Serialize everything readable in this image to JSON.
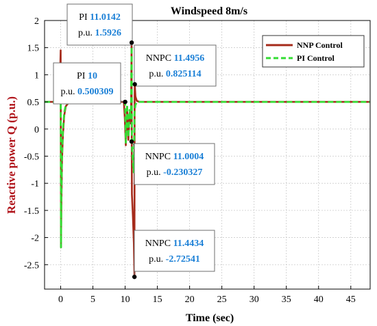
{
  "chart_data": {
    "type": "line",
    "title": "Windspeed 8m/s",
    "xlabel": "Time (sec)",
    "ylabel": "Reactive power Q (p.u.)",
    "xlim": [
      -2.5,
      48
    ],
    "ylim": [
      -2.95,
      2.0
    ],
    "xticks": [
      0,
      5,
      10,
      15,
      20,
      25,
      30,
      35,
      40,
      45
    ],
    "yticks": [
      -2.5,
      -2,
      -1.5,
      -1,
      -0.5,
      0,
      0.5,
      1,
      1.5,
      2
    ],
    "grid": true,
    "legend_position": "top-right",
    "series": [
      {
        "name": "NNP Control",
        "color": "#a52a1a",
        "style": "solid",
        "points": [
          [
            -2.5,
            0.5
          ],
          [
            -0.2,
            0.5
          ],
          [
            0,
            1.45
          ],
          [
            0.05,
            -2.18
          ],
          [
            0.1,
            -1.5
          ],
          [
            0.2,
            -0.6
          ],
          [
            0.35,
            -0.1
          ],
          [
            0.55,
            0.25
          ],
          [
            0.8,
            0.42
          ],
          [
            1.2,
            0.48
          ],
          [
            1.8,
            0.5
          ],
          [
            9.8,
            0.5
          ],
          [
            9.95,
            0.2
          ],
          [
            10.1,
            -0.3
          ],
          [
            10.3,
            0.4
          ],
          [
            10.5,
            -0.2
          ],
          [
            10.7,
            0.3
          ],
          [
            10.9,
            0.1
          ],
          [
            11.0,
            1.59
          ],
          [
            11.02,
            -0.23
          ],
          [
            11.05,
            -1.2
          ],
          [
            11.2,
            -1.6
          ],
          [
            11.35,
            -2.1
          ],
          [
            11.4434,
            -2.72541
          ],
          [
            11.47,
            0.6
          ],
          [
            11.4956,
            0.825114
          ],
          [
            11.6,
            0.6
          ],
          [
            11.8,
            0.52
          ],
          [
            12.2,
            0.5
          ],
          [
            48,
            0.5
          ]
        ]
      },
      {
        "name": "PI Control",
        "color": "#33dd33",
        "style": "dashed",
        "points": [
          [
            -2.5,
            0.5
          ],
          [
            -0.2,
            0.5
          ],
          [
            0,
            1.1
          ],
          [
            0.05,
            -2.18
          ],
          [
            0.1,
            -1.3
          ],
          [
            0.2,
            -0.5
          ],
          [
            0.35,
            0.0
          ],
          [
            0.55,
            0.3
          ],
          [
            0.8,
            0.45
          ],
          [
            1.2,
            0.49
          ],
          [
            1.8,
            0.500309
          ],
          [
            9.8,
            0.5
          ],
          [
            10.0,
            0.500309
          ],
          [
            10.1,
            -0.25
          ],
          [
            10.3,
            0.45
          ],
          [
            10.5,
            -0.15
          ],
          [
            10.7,
            0.35
          ],
          [
            10.9,
            0.2
          ],
          [
            11.0142,
            1.5926
          ],
          [
            11.05,
            -0.3
          ],
          [
            11.2,
            -0.6
          ],
          [
            11.35,
            -0.8
          ],
          [
            11.45,
            0.3
          ],
          [
            11.6,
            0.45
          ],
          [
            11.9,
            0.5
          ],
          [
            48,
            0.5
          ]
        ]
      }
    ],
    "datatips": [
      {
        "id": "tip-pi-10",
        "x": 10,
        "y": 0.500309,
        "prefix": "PI",
        "x_text": "10",
        "y_text": "0.500309"
      },
      {
        "id": "tip-pi-11",
        "x": 11.0142,
        "y": 1.5926,
        "prefix": "PI",
        "x_text": "11.0142",
        "y_text": "1.5926"
      },
      {
        "id": "tip-nnpc-11-4956",
        "x": 11.4956,
        "y": 0.825114,
        "prefix": "NNPC",
        "x_text": "11.4956",
        "y_text": "0.825114"
      },
      {
        "id": "tip-nnpc-11-0004",
        "x": 11.0004,
        "y": -0.230327,
        "prefix": "NNPC",
        "x_text": "11.0004",
        "y_text": "-0.230327"
      },
      {
        "id": "tip-nnpc-11-4434",
        "x": 11.4434,
        "y": -2.72541,
        "prefix": "NNPC",
        "x_text": "11.4434",
        "y_text": "-2.72541"
      }
    ],
    "pu_label": "p.u."
  }
}
